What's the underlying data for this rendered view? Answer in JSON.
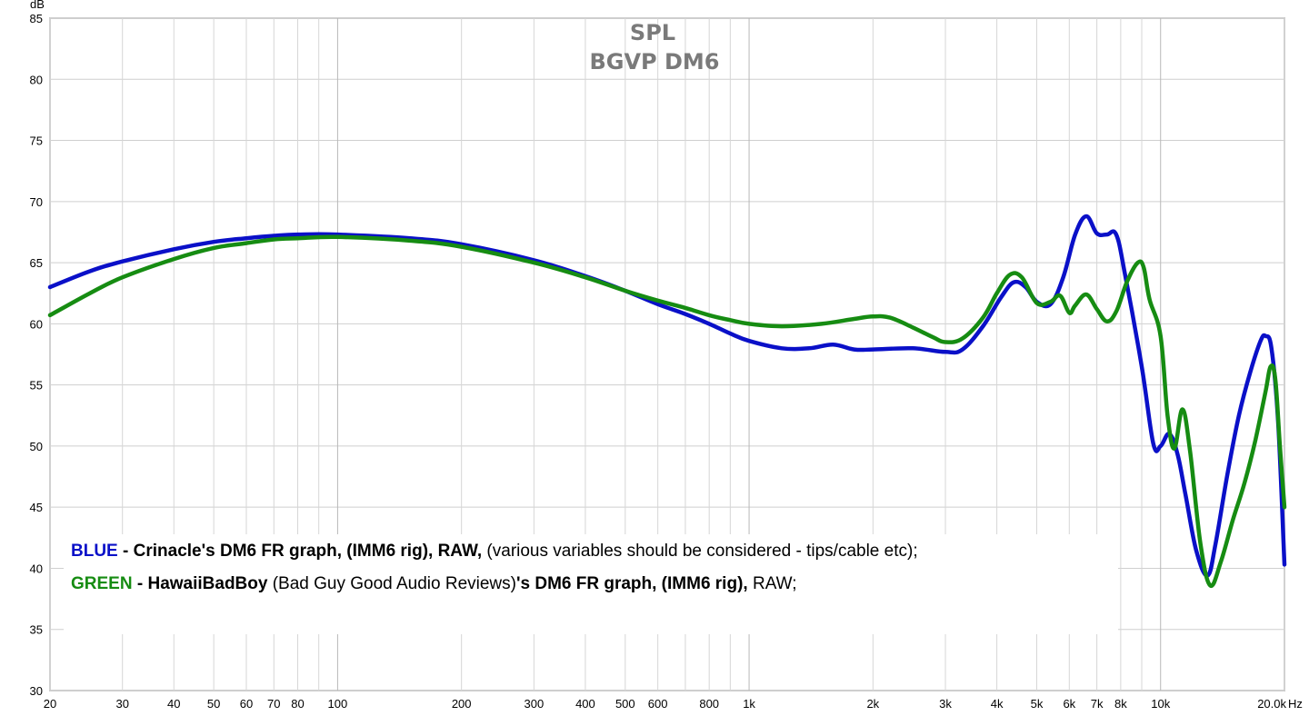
{
  "chart_data": {
    "type": "line",
    "title": "SPL",
    "subtitle": "BGVP DM6",
    "ylabel": "dB",
    "xlabel": "Hz",
    "xscale": "log",
    "xlim": [
      20,
      20000
    ],
    "ylim": [
      30,
      85
    ],
    "yticks": [
      30,
      35,
      40,
      45,
      50,
      55,
      60,
      65,
      70,
      75,
      80,
      85
    ],
    "xticks": [
      {
        "v": 20,
        "label": "20"
      },
      {
        "v": 30,
        "label": "30"
      },
      {
        "v": 40,
        "label": "40"
      },
      {
        "v": 50,
        "label": "50"
      },
      {
        "v": 60,
        "label": "60"
      },
      {
        "v": 70,
        "label": "70"
      },
      {
        "v": 80,
        "label": "80"
      },
      {
        "v": 100,
        "label": "100"
      },
      {
        "v": 200,
        "label": "200"
      },
      {
        "v": 300,
        "label": "300"
      },
      {
        "v": 400,
        "label": "400"
      },
      {
        "v": 500,
        "label": "500"
      },
      {
        "v": 600,
        "label": "600"
      },
      {
        "v": 800,
        "label": "800"
      },
      {
        "v": 1000,
        "label": "1k"
      },
      {
        "v": 2000,
        "label": "2k"
      },
      {
        "v": 3000,
        "label": "3k"
      },
      {
        "v": 4000,
        "label": "4k"
      },
      {
        "v": 5000,
        "label": "5k"
      },
      {
        "v": 6000,
        "label": "6k"
      },
      {
        "v": 7000,
        "label": "7k"
      },
      {
        "v": 8000,
        "label": "8k"
      },
      {
        "v": 10000,
        "label": "10k"
      },
      {
        "v": 20000,
        "label": "20.0k"
      }
    ],
    "grid": true,
    "series": [
      {
        "color": "#0a10c8",
        "points": [
          [
            20,
            63.0
          ],
          [
            25,
            64.3
          ],
          [
            30,
            65.1
          ],
          [
            40,
            66.1
          ],
          [
            50,
            66.7
          ],
          [
            60,
            67.0
          ],
          [
            70,
            67.2
          ],
          [
            80,
            67.3
          ],
          [
            100,
            67.3
          ],
          [
            150,
            67.0
          ],
          [
            200,
            66.5
          ],
          [
            300,
            65.2
          ],
          [
            400,
            63.9
          ],
          [
            500,
            62.7
          ],
          [
            600,
            61.6
          ],
          [
            700,
            60.8
          ],
          [
            800,
            60.0
          ],
          [
            900,
            59.2
          ],
          [
            1000,
            58.6
          ],
          [
            1200,
            58.0
          ],
          [
            1400,
            58.0
          ],
          [
            1600,
            58.3
          ],
          [
            1800,
            57.9
          ],
          [
            2000,
            57.9
          ],
          [
            2500,
            58.0
          ],
          [
            3000,
            57.7
          ],
          [
            3300,
            57.9
          ],
          [
            3700,
            59.8
          ],
          [
            4100,
            62.2
          ],
          [
            4400,
            63.4
          ],
          [
            4700,
            63.0
          ],
          [
            5000,
            61.8
          ],
          [
            5400,
            61.6
          ],
          [
            5800,
            63.8
          ],
          [
            6200,
            67.3
          ],
          [
            6600,
            68.8
          ],
          [
            7000,
            67.4
          ],
          [
            7400,
            67.3
          ],
          [
            7800,
            67.3
          ],
          [
            8200,
            64.0
          ],
          [
            9000,
            56.5
          ],
          [
            9600,
            50.2
          ],
          [
            10000,
            50.0
          ],
          [
            10500,
            51.0
          ],
          [
            11000,
            49.3
          ],
          [
            11500,
            46.0
          ],
          [
            12200,
            41.5
          ],
          [
            13000,
            39.4
          ],
          [
            13600,
            42.0
          ],
          [
            14500,
            47.5
          ],
          [
            15500,
            52.5
          ],
          [
            16500,
            56.0
          ],
          [
            17500,
            58.6
          ],
          [
            18000,
            59.0
          ],
          [
            18600,
            58.0
          ],
          [
            19300,
            52.0
          ],
          [
            20000,
            40.3
          ]
        ]
      },
      {
        "color": "#168c12",
        "points": [
          [
            20,
            60.7
          ],
          [
            25,
            62.5
          ],
          [
            30,
            63.8
          ],
          [
            40,
            65.3
          ],
          [
            50,
            66.2
          ],
          [
            60,
            66.6
          ],
          [
            70,
            66.9
          ],
          [
            80,
            67.0
          ],
          [
            100,
            67.1
          ],
          [
            150,
            66.8
          ],
          [
            200,
            66.3
          ],
          [
            300,
            65.0
          ],
          [
            400,
            63.8
          ],
          [
            500,
            62.7
          ],
          [
            600,
            61.9
          ],
          [
            700,
            61.3
          ],
          [
            800,
            60.7
          ],
          [
            900,
            60.3
          ],
          [
            1000,
            60.0
          ],
          [
            1200,
            59.8
          ],
          [
            1500,
            60.0
          ],
          [
            1800,
            60.4
          ],
          [
            2000,
            60.6
          ],
          [
            2200,
            60.5
          ],
          [
            2500,
            59.7
          ],
          [
            2800,
            58.9
          ],
          [
            3000,
            58.5
          ],
          [
            3300,
            58.8
          ],
          [
            3700,
            60.5
          ],
          [
            4000,
            62.5
          ],
          [
            4300,
            64.0
          ],
          [
            4600,
            63.8
          ],
          [
            5000,
            61.7
          ],
          [
            5400,
            61.8
          ],
          [
            5700,
            62.3
          ],
          [
            6000,
            60.9
          ],
          [
            6200,
            61.5
          ],
          [
            6600,
            62.4
          ],
          [
            7000,
            61.2
          ],
          [
            7400,
            60.2
          ],
          [
            7800,
            61.0
          ],
          [
            8300,
            63.5
          ],
          [
            8800,
            65.0
          ],
          [
            9100,
            64.6
          ],
          [
            9400,
            62.0
          ],
          [
            10000,
            59.0
          ],
          [
            10400,
            52.5
          ],
          [
            10800,
            49.8
          ],
          [
            11300,
            53.0
          ],
          [
            11800,
            49.5
          ],
          [
            12500,
            42.0
          ],
          [
            13200,
            38.6
          ],
          [
            14000,
            40.5
          ],
          [
            15000,
            44.0
          ],
          [
            16000,
            47.0
          ],
          [
            17000,
            50.5
          ],
          [
            18000,
            54.5
          ],
          [
            18500,
            56.5
          ],
          [
            19000,
            55.5
          ],
          [
            19500,
            50.0
          ],
          [
            20000,
            45.0
          ]
        ]
      }
    ]
  },
  "legend": {
    "line1": {
      "color_word": "BLUE",
      "dash": " - ",
      "bold_text": "Crinacle's DM6 FR graph, (IMM6 rig), RAW,",
      "normal_text": " (various variables should be considered - tips/cable etc);"
    },
    "line2": {
      "color_word": "GREEN",
      "dash": " - ",
      "bold_name": "HawaiiBadBoy",
      "normal_text": " (Bad Guy Good Audio Reviews)",
      "bold_tail": "'s DM6 FR graph, (IMM6 rig),",
      "end_text": " RAW;"
    }
  }
}
